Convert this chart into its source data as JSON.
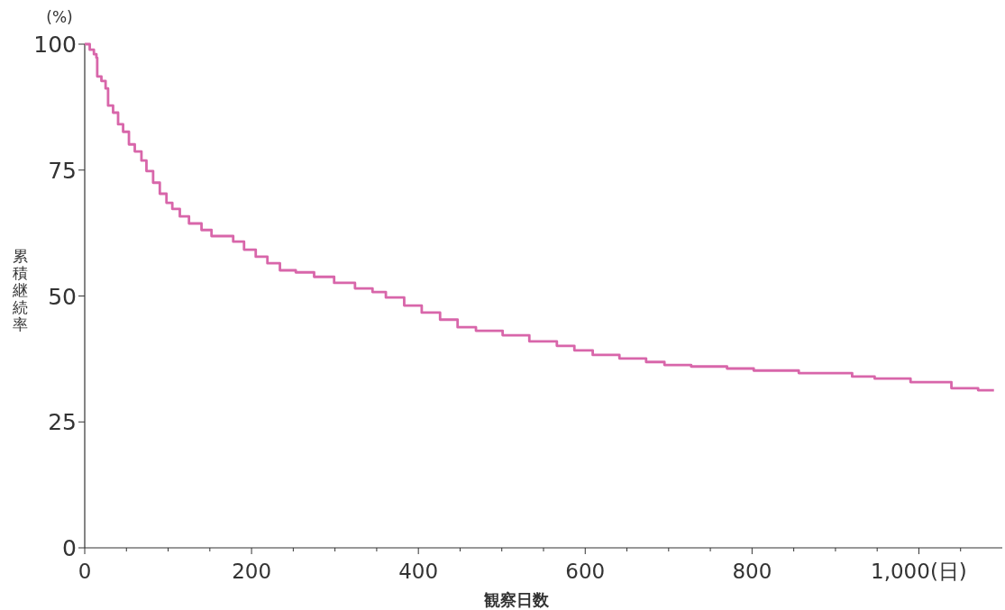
{
  "chart_data": {
    "type": "step",
    "xlabel": "観察日数",
    "ylabel": "累積継続率",
    "annotations": [
      "(%)"
    ],
    "xlim": [
      0,
      1100
    ],
    "ylim": [
      0,
      100
    ],
    "xticks": [
      0,
      {
        "value": 50,
        "label": null
      },
      200,
      {
        "value": 100,
        "label": null
      },
      {
        "value": 150,
        "label": null
      },
      {
        "value": 250,
        "label": null
      },
      {
        "value": 300,
        "label": null
      },
      {
        "value": 350,
        "label": null
      },
      400,
      {
        "value": 450,
        "label": null
      },
      {
        "value": 500,
        "label": null
      },
      {
        "value": 550,
        "label": null
      },
      600,
      {
        "value": 650,
        "label": null
      },
      {
        "value": 700,
        "label": null
      },
      {
        "value": 750,
        "label": null
      },
      800,
      {
        "value": 850,
        "label": null
      },
      {
        "value": 900,
        "label": null
      },
      {
        "value": 950,
        "label": null
      },
      {
        "value": 1000,
        "label": "1,000(日)"
      },
      {
        "value": 1050,
        "label": null
      }
    ],
    "yticks": [
      0,
      25,
      50,
      75,
      100
    ],
    "grid": false,
    "line_style": "solid",
    "marker": "none",
    "series": [
      {
        "color": "#d866aa",
        "x": [
          0,
          6,
          11,
          14,
          15,
          20,
          25,
          28,
          34,
          40,
          46,
          53,
          60,
          68,
          74,
          82,
          90,
          98,
          105,
          114,
          125,
          140,
          152,
          178,
          191,
          205,
          219,
          234,
          253,
          275,
          299,
          324,
          345,
          361,
          383,
          404,
          426,
          447,
          469,
          501,
          533,
          566,
          587,
          609,
          641,
          673,
          695,
          727,
          770,
          802,
          856,
          920,
          947,
          990,
          1039,
          1071,
          1090
        ],
        "values": [
          100,
          98.9,
          98,
          97.3,
          93.6,
          92.7,
          91.2,
          87.8,
          86.4,
          84.1,
          82.6,
          80.1,
          78.7,
          76.9,
          74.8,
          72.5,
          70.3,
          68.5,
          67.3,
          65.8,
          64.4,
          63.1,
          61.9,
          60.8,
          59.2,
          57.8,
          56.5,
          55.1,
          54.7,
          53.8,
          52.6,
          51.5,
          50.8,
          49.7,
          48.1,
          46.7,
          45.3,
          43.8,
          43.1,
          42.2,
          41,
          40.1,
          39.2,
          38.3,
          37.6,
          36.9,
          36.3,
          36,
          35.6,
          35.2,
          34.7,
          34,
          33.6,
          32.9,
          31.7,
          31.3,
          31.3
        ]
      }
    ]
  }
}
